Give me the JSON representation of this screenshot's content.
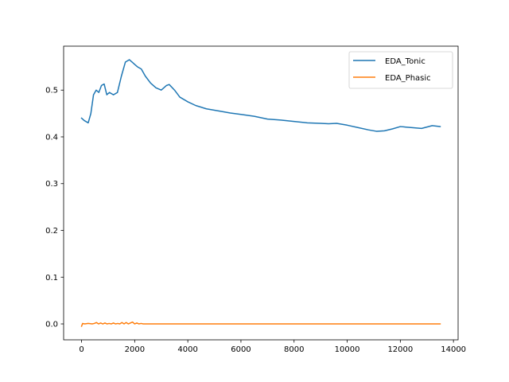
{
  "chart_data": {
    "type": "line",
    "title": "",
    "xlabel": "",
    "ylabel": "",
    "xlim": [
      -675,
      14175
    ],
    "ylim": [
      -0.034,
      0.594
    ],
    "xticks": [
      0,
      2000,
      4000,
      6000,
      8000,
      10000,
      12000,
      14000
    ],
    "xtick_labels": [
      "0",
      "2000",
      "4000",
      "6000",
      "8000",
      "10000",
      "12000",
      "14000"
    ],
    "yticks": [
      0.0,
      0.1,
      0.2,
      0.3,
      0.4,
      0.5
    ],
    "ytick_labels": [
      "0.0",
      "0.1",
      "0.2",
      "0.3",
      "0.4",
      "0.5"
    ],
    "grid": false,
    "legend_position": "top-right",
    "series": [
      {
        "name": "EDA_Tonic",
        "color": "#1f77b4",
        "x": [
          0,
          100,
          250,
          350,
          450,
          550,
          650,
          750,
          850,
          950,
          1050,
          1200,
          1350,
          1500,
          1650,
          1800,
          1900,
          2000,
          2100,
          2250,
          2400,
          2600,
          2800,
          3000,
          3200,
          3300,
          3500,
          3700,
          4000,
          4300,
          4700,
          5200,
          5600,
          6000,
          6500,
          7000,
          7500,
          8000,
          8500,
          9000,
          9300,
          9600,
          10000,
          10400,
          10800,
          11100,
          11400,
          11700,
          12000,
          12400,
          12800,
          13200,
          13500
        ],
        "y": [
          0.44,
          0.435,
          0.43,
          0.45,
          0.49,
          0.5,
          0.495,
          0.51,
          0.513,
          0.49,
          0.495,
          0.49,
          0.495,
          0.53,
          0.56,
          0.565,
          0.56,
          0.555,
          0.55,
          0.545,
          0.53,
          0.515,
          0.505,
          0.5,
          0.51,
          0.512,
          0.5,
          0.485,
          0.475,
          0.467,
          0.46,
          0.455,
          0.451,
          0.448,
          0.444,
          0.438,
          0.436,
          0.433,
          0.43,
          0.429,
          0.428,
          0.429,
          0.425,
          0.42,
          0.415,
          0.412,
          0.413,
          0.417,
          0.422,
          0.42,
          0.418,
          0.424,
          0.422
        ]
      },
      {
        "name": "EDA_Phasic",
        "color": "#ff7f0e",
        "x": [
          0,
          40,
          120,
          250,
          400,
          480,
          560,
          640,
          720,
          800,
          880,
          960,
          1040,
          1120,
          1200,
          1280,
          1360,
          1440,
          1520,
          1600,
          1680,
          1760,
          1840,
          1920,
          2000,
          2080,
          2160,
          2240,
          2320,
          2400,
          2600,
          3000,
          4000,
          6000,
          8000,
          10000,
          12000,
          13500
        ],
        "y": [
          -0.005,
          0.001,
          0.0,
          0.001,
          0.0,
          0.001,
          0.003,
          0.0,
          0.002,
          0.0,
          0.002,
          0.0,
          0.001,
          0.0,
          0.002,
          0.0,
          0.001,
          0.0,
          0.003,
          0.0,
          0.003,
          0.0,
          0.002,
          0.004,
          0.0,
          0.002,
          0.0,
          0.001,
          0.0,
          0.0,
          0.0,
          0.0,
          0.0,
          0.0,
          0.0,
          0.0,
          0.0,
          0.0
        ]
      }
    ]
  }
}
